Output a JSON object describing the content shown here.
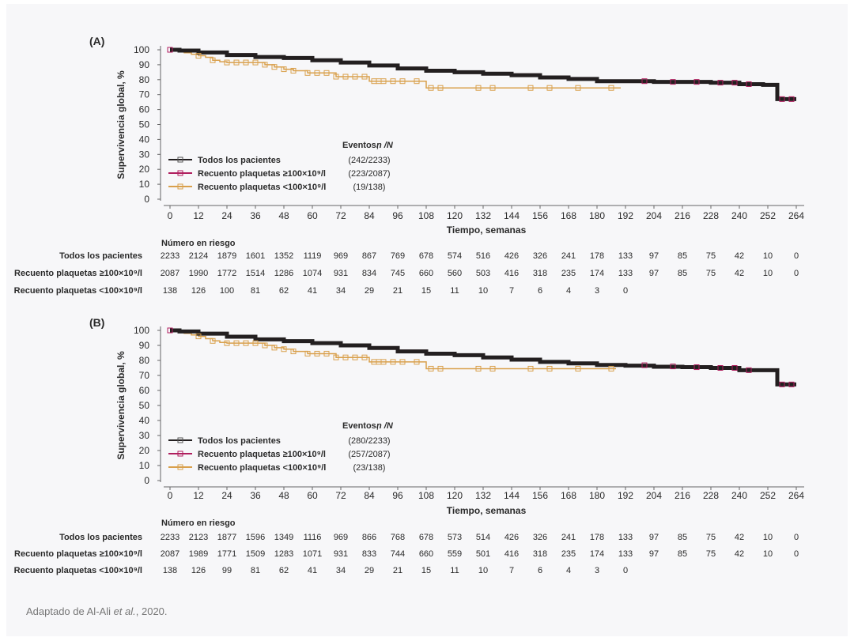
{
  "caption": {
    "text": "Adaptado de Al-Ali ",
    "italic": "et al.",
    "suffix": ", 2020."
  },
  "colors": {
    "all": "#231f20",
    "high": "#b01e5e",
    "low": "#d9a04c",
    "axis": "#666666",
    "text": "#2a2a2a",
    "background": "#f7f7f9"
  },
  "chart_data": [
    {
      "type": "line",
      "panel_label": "(A)",
      "xlabel": "Tiempo, semanas",
      "ylabel": "Supervivencia global, %",
      "xlim": [
        0,
        264
      ],
      "ylim": [
        0,
        100
      ],
      "xticks": [
        0,
        12,
        24,
        36,
        48,
        60,
        72,
        84,
        96,
        108,
        120,
        132,
        144,
        156,
        168,
        180,
        192,
        204,
        216,
        228,
        240,
        252,
        264
      ],
      "yticks": [
        0,
        10,
        20,
        30,
        40,
        50,
        60,
        70,
        80,
        90,
        100
      ],
      "legend_title": "Eventos, n /N",
      "series": [
        {
          "key": "all",
          "name": "Todos los pacientes",
          "events": "(242/2233)",
          "x": [
            0,
            4,
            12,
            24,
            36,
            48,
            60,
            72,
            84,
            96,
            108,
            120,
            132,
            144,
            156,
            168,
            180,
            192,
            204,
            216,
            228,
            240,
            250,
            252,
            256,
            264
          ],
          "y": [
            100,
            99.5,
            98.2,
            96.5,
            95.2,
            94.5,
            93,
            91.5,
            89.5,
            87.5,
            86,
            85,
            84,
            83,
            81.5,
            80.5,
            79,
            79,
            78.5,
            78.5,
            78,
            77,
            76.5,
            76.5,
            67,
            67
          ]
        },
        {
          "key": "high",
          "name": "Recuento plaquetas ≥100×10⁹/l",
          "events": "(223/2087)",
          "x": [
            0,
            4,
            12,
            24,
            36,
            48,
            60,
            72,
            84,
            96,
            108,
            120,
            132,
            144,
            156,
            168,
            180,
            192,
            204,
            216,
            228,
            240,
            250,
            252,
            256,
            264
          ],
          "y": [
            100,
            99.6,
            98.5,
            97,
            95.5,
            94.8,
            93.4,
            91.8,
            90,
            88,
            86.5,
            85.5,
            84.5,
            83.5,
            82,
            81,
            79.5,
            79,
            78.5,
            78.5,
            78,
            77,
            76.5,
            76.5,
            67,
            67
          ]
        },
        {
          "key": "low",
          "name": "Recuento plaquetas <100×10⁹/l",
          "events": "(19/138)",
          "x": [
            0,
            4,
            6,
            9,
            12,
            15,
            18,
            21,
            24,
            36,
            40,
            44,
            48,
            52,
            58,
            64,
            70,
            80,
            84,
            86,
            96,
            100,
            104,
            108,
            120,
            132,
            144,
            156,
            168,
            180,
            190
          ],
          "y": [
            100,
            99,
            98,
            97,
            96,
            95,
            93,
            92,
            91.5,
            91.5,
            90,
            88.5,
            87,
            86,
            84.5,
            84.5,
            82,
            82,
            79,
            79,
            79,
            79,
            79,
            74.5,
            74.5,
            74.5,
            74.5,
            74.5,
            74.5,
            74.5,
            74.5
          ]
        }
      ],
      "risk_table": {
        "title": "Número en riesgo",
        "rows": [
          {
            "label": "Todos los pacientes",
            "values": [
              "2233",
              "2124",
              "1879",
              "1601",
              "1352",
              "1119",
              "969",
              "867",
              "769",
              "678",
              "574",
              "516",
              "426",
              "326",
              "241",
              "178",
              "133",
              "97",
              "85",
              "75",
              "42",
              "10",
              "0"
            ]
          },
          {
            "label": "Recuento plaquetas ≥100×10⁹/l",
            "values": [
              "2087",
              "1990",
              "1772",
              "1514",
              "1286",
              "1074",
              "931",
              "834",
              "745",
              "660",
              "560",
              "503",
              "416",
              "318",
              "235",
              "174",
              "133",
              "97",
              "85",
              "75",
              "42",
              "10",
              "0"
            ]
          },
          {
            "label": "Recuento plaquetas <100×10⁹/l",
            "values": [
              "138",
              "126",
              "100",
              "81",
              "62",
              "41",
              "34",
              "29",
              "21",
              "15",
              "11",
              "10",
              "7",
              "6",
              "4",
              "3",
              "0"
            ]
          }
        ]
      }
    },
    {
      "type": "line",
      "panel_label": "(B)",
      "xlabel": "Tiempo, semanas",
      "ylabel": "Supervivencia global, %",
      "xlim": [
        0,
        264
      ],
      "ylim": [
        0,
        100
      ],
      "xticks": [
        0,
        12,
        24,
        36,
        48,
        60,
        72,
        84,
        96,
        108,
        120,
        132,
        144,
        156,
        168,
        180,
        192,
        204,
        216,
        228,
        240,
        252,
        264
      ],
      "yticks": [
        0,
        10,
        20,
        30,
        40,
        50,
        60,
        70,
        80,
        90,
        100
      ],
      "legend_title": "Eventos, n /N",
      "series": [
        {
          "key": "all",
          "name": "Todos los pacientes",
          "events": "(280/2233)",
          "x": [
            0,
            4,
            12,
            24,
            36,
            48,
            60,
            72,
            84,
            96,
            108,
            120,
            132,
            144,
            156,
            168,
            180,
            192,
            204,
            216,
            228,
            240,
            250,
            252,
            256,
            264
          ],
          "y": [
            100,
            99.3,
            97.8,
            95.8,
            94,
            92.8,
            91.5,
            90,
            88.3,
            86,
            84.5,
            83.5,
            82,
            80.5,
            79,
            78,
            77,
            76.5,
            75.8,
            75.5,
            75,
            73.5,
            73.5,
            73.5,
            64,
            64
          ]
        },
        {
          "key": "high",
          "name": "Recuento plaquetas ≥100×10⁹/l",
          "events": "(257/2087)",
          "x": [
            0,
            4,
            12,
            24,
            36,
            48,
            60,
            72,
            84,
            96,
            108,
            120,
            132,
            144,
            156,
            168,
            180,
            192,
            204,
            216,
            228,
            240,
            250,
            252,
            256,
            264
          ],
          "y": [
            100,
            99.4,
            98.2,
            96.4,
            94.6,
            93.3,
            92,
            90.5,
            88.8,
            86.5,
            85,
            84,
            82.5,
            81,
            79.5,
            78.5,
            77.5,
            76.8,
            76,
            75.5,
            75,
            73.5,
            73.5,
            73.5,
            64,
            64
          ]
        },
        {
          "key": "low",
          "name": "Recuento plaquetas <100×10⁹/l",
          "events": "(23/138)",
          "x": [
            0,
            4,
            6,
            9,
            12,
            15,
            18,
            21,
            24,
            36,
            40,
            44,
            48,
            52,
            58,
            64,
            70,
            80,
            84,
            86,
            96,
            100,
            104,
            108,
            120,
            132,
            144,
            156,
            168,
            180,
            188
          ],
          "y": [
            100,
            99,
            98,
            97,
            96,
            94.5,
            93,
            92,
            91.5,
            91.5,
            90,
            88.5,
            87.5,
            86,
            84.5,
            84.5,
            82,
            82,
            79,
            79,
            79,
            79,
            79,
            74.5,
            74.5,
            74.5,
            74.5,
            74.5,
            74.5,
            74.5,
            74.5
          ]
        }
      ],
      "risk_table": {
        "title": "Número en riesgo",
        "rows": [
          {
            "label": "Todos los pacientes",
            "values": [
              "2233",
              "2123",
              "1877",
              "1596",
              "1349",
              "1116",
              "969",
              "866",
              "768",
              "678",
              "573",
              "514",
              "426",
              "326",
              "241",
              "178",
              "133",
              "97",
              "85",
              "75",
              "42",
              "10",
              "0"
            ]
          },
          {
            "label": "Recuento plaquetas ≥100×10⁹/l",
            "values": [
              "2087",
              "1989",
              "1771",
              "1509",
              "1283",
              "1071",
              "931",
              "833",
              "744",
              "660",
              "559",
              "501",
              "416",
              "318",
              "235",
              "174",
              "133",
              "97",
              "85",
              "75",
              "42",
              "10",
              "0"
            ]
          },
          {
            "label": "Recuento plaquetas <100×10⁹/l",
            "values": [
              "138",
              "126",
              "99",
              "81",
              "62",
              "41",
              "34",
              "29",
              "21",
              "15",
              "11",
              "10",
              "7",
              "6",
              "4",
              "3",
              "0"
            ]
          }
        ]
      }
    }
  ]
}
